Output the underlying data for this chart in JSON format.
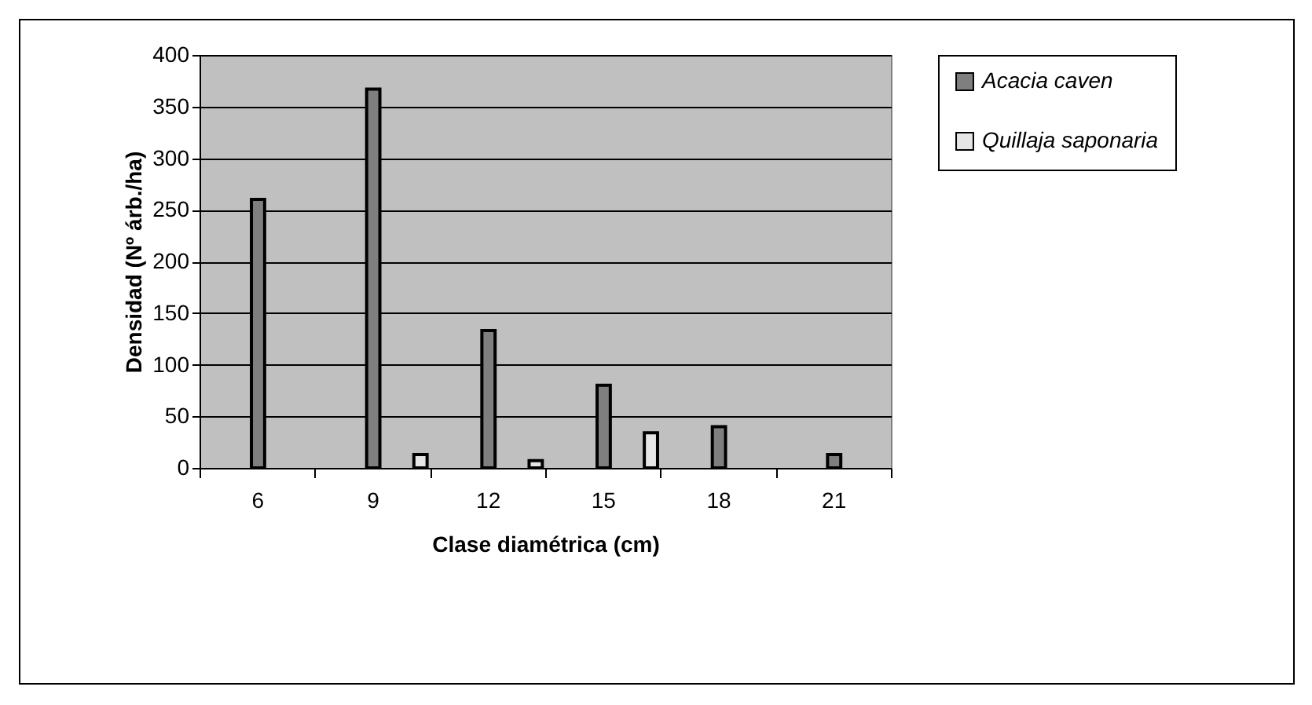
{
  "chart_data": {
    "type": "bar",
    "xlabel": "Clase diamétrica (cm)",
    "ylabel": "Densidad (Nº árb./ha)",
    "categories": [
      "6",
      "9",
      "12",
      "15",
      "18",
      "21"
    ],
    "series": [
      {
        "name": "Acacia caven",
        "color": "#7f7f7f",
        "values": [
          260,
          367,
          133,
          80,
          40,
          13
        ]
      },
      {
        "name": "Quillaja saponaria",
        "color": "#e6e6e6",
        "values": [
          null,
          13,
          7,
          34,
          null,
          null
        ]
      }
    ],
    "ylim": [
      0,
      400
    ],
    "yticks": [
      0,
      50,
      100,
      150,
      200,
      250,
      300,
      350,
      400
    ],
    "grid": "y",
    "legend": "top right"
  }
}
